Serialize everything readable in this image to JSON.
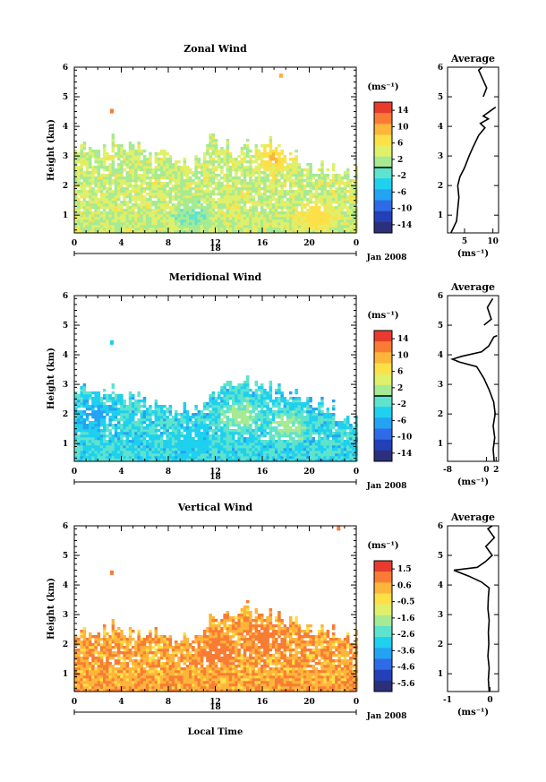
{
  "chart_data": [
    {
      "type": "heatmap",
      "title": "Zonal Wind",
      "ylabel": "Height (km)",
      "xlabel": "",
      "x_ticks": [
        "0",
        "4",
        "8",
        "12",
        "16",
        "20",
        "0"
      ],
      "xlim": [
        0,
        24
      ],
      "y_ticks": [
        "1",
        "2",
        "3",
        "4",
        "5",
        "6"
      ],
      "ylim": [
        0.4,
        6
      ],
      "day_label": "18",
      "date_label": "Jan 2008",
      "colorbar": {
        "unit": "(ms⁻¹)",
        "ticks": [
          "14",
          "10",
          "6",
          "2",
          "-2",
          "-6",
          "-10",
          "-14"
        ],
        "range": [
          -16,
          16
        ],
        "marked_level": 0
      },
      "field": {
        "top": [
          3.3,
          3.5,
          3.2,
          3.6,
          3.4,
          3.3,
          3.0,
          3.1,
          2.9,
          2.8,
          3.1,
          3.6,
          3.4,
          3.2,
          3.4,
          3.3,
          3.5,
          3.2,
          3.0,
          2.8,
          2.7,
          2.6,
          2.6,
          2.5
        ],
        "center_value": 3,
        "patches": [
          {
            "x": 17,
            "y": 3.0,
            "value": 9
          },
          {
            "x": 20.5,
            "y": 1.0,
            "value": 8
          },
          {
            "x": 3.2,
            "y": 4.5,
            "value": 12
          },
          {
            "x": 17.6,
            "y": 5.7,
            "value": 8
          },
          {
            "x": 10,
            "y": 1.0,
            "value": -1
          }
        ]
      },
      "average_profile": {
        "title": "Average",
        "xlabel": "(ms⁻¹)",
        "x_ticks": [
          "5",
          "10"
        ],
        "xlim": [
          2,
          11
        ],
        "ylim": [
          0.4,
          6
        ],
        "points": [
          [
            2.6,
            0.4
          ],
          [
            3.6,
            0.8
          ],
          [
            3.8,
            1.2
          ],
          [
            4.0,
            1.6
          ],
          [
            3.8,
            2.0
          ],
          [
            4.2,
            2.3
          ],
          [
            5.0,
            2.6
          ],
          [
            5.8,
            3.0
          ],
          [
            6.5,
            3.3
          ],
          [
            7.5,
            3.7
          ],
          [
            8.6,
            3.95
          ],
          [
            7.8,
            4.1
          ],
          [
            9.2,
            4.25
          ],
          [
            8.3,
            4.35
          ],
          [
            10.1,
            4.6
          ],
          [
            10.5,
            4.65
          ]
        ],
        "points_upper": [
          [
            8.3,
            5.0
          ],
          [
            8.9,
            5.3
          ],
          [
            7.5,
            5.9
          ],
          [
            8.1,
            6.0
          ]
        ]
      }
    },
    {
      "type": "heatmap",
      "title": "Meridional Wind",
      "ylabel": "Height (km)",
      "xlabel": "",
      "x_ticks": [
        "0",
        "4",
        "8",
        "12",
        "16",
        "20",
        "0"
      ],
      "xlim": [
        0,
        24
      ],
      "y_ticks": [
        "1",
        "2",
        "3",
        "4",
        "5",
        "6"
      ],
      "ylim": [
        0.4,
        6
      ],
      "day_label": "18",
      "date_label": "Jan 2008",
      "colorbar": {
        "unit": "(ms⁻¹)",
        "ticks": [
          "14",
          "10",
          "6",
          "2",
          "-2",
          "-6",
          "-10",
          "-14"
        ],
        "range": [
          -16,
          16
        ],
        "marked_level": 0
      },
      "field": {
        "top": [
          2.9,
          3.0,
          2.8,
          2.9,
          2.7,
          2.6,
          2.3,
          2.2,
          2.1,
          2.2,
          2.4,
          2.6,
          3.0,
          3.2,
          3.1,
          3.0,
          2.9,
          2.8,
          2.7,
          2.6,
          2.5,
          2.3,
          2.0,
          1.9
        ],
        "center_value": -3,
        "patches": [
          {
            "x": 1.5,
            "y": 2.0,
            "value": -7
          },
          {
            "x": 14,
            "y": 2.0,
            "value": 2
          },
          {
            "x": 18,
            "y": 1.6,
            "value": 2
          },
          {
            "x": 10,
            "y": 1.2,
            "value": -5
          },
          {
            "x": 3.2,
            "y": 4.4,
            "value": -4
          }
        ]
      },
      "average_profile": {
        "title": "Average",
        "xlabel": "(ms⁻¹)",
        "x_ticks": [
          "-8",
          "0",
          "2"
        ],
        "xlim": [
          -8,
          2.5
        ],
        "ylim": [
          0.4,
          6
        ],
        "points": [
          [
            1.6,
            0.4
          ],
          [
            1.4,
            0.8
          ],
          [
            1.7,
            1.2
          ],
          [
            1.4,
            1.6
          ],
          [
            1.8,
            2.0
          ],
          [
            1.5,
            2.4
          ],
          [
            0.6,
            2.8
          ],
          [
            -0.5,
            3.2
          ],
          [
            -2.0,
            3.6
          ],
          [
            -5.5,
            3.75
          ],
          [
            -7.0,
            3.85
          ],
          [
            -5.0,
            3.95
          ],
          [
            -1.0,
            4.1
          ],
          [
            0.5,
            4.3
          ],
          [
            1.5,
            4.6
          ],
          [
            2.2,
            4.65
          ]
        ],
        "points_upper": [
          [
            -0.5,
            5.0
          ],
          [
            1.0,
            5.2
          ],
          [
            0.2,
            5.6
          ],
          [
            1.3,
            5.9
          ]
        ]
      }
    },
    {
      "type": "heatmap",
      "title": "Vertical Wind",
      "ylabel": "Height (km)",
      "xlabel": "Local Time",
      "x_ticks": [
        "0",
        "4",
        "8",
        "12",
        "16",
        "20",
        "0"
      ],
      "xlim": [
        0,
        24
      ],
      "y_ticks": [
        "1",
        "2",
        "3",
        "4",
        "5",
        "6"
      ],
      "ylim": [
        0.4,
        6
      ],
      "day_label": "18",
      "date_label": "Jan 2008",
      "colorbar": {
        "unit": "(ms⁻¹)",
        "ticks": [
          "1.5",
          "0.6",
          "-0.5",
          "-1.6",
          "-2.6",
          "-3.6",
          "-4.6",
          "-5.6"
        ],
        "range": [
          -6.1,
          2.0
        ],
        "marked_level": null
      },
      "field": {
        "top": [
          2.4,
          2.6,
          2.5,
          2.7,
          2.5,
          2.3,
          2.4,
          2.2,
          2.1,
          2.3,
          2.5,
          2.8,
          3.0,
          3.2,
          3.3,
          3.1,
          3.0,
          2.9,
          2.8,
          2.7,
          2.6,
          2.5,
          2.4,
          2.3
        ],
        "center_value": 0.5,
        "patches": [
          {
            "x": 12,
            "y": 1.8,
            "value": 1.1
          },
          {
            "x": 16,
            "y": 2.2,
            "value": 1.1
          },
          {
            "x": 3.2,
            "y": 4.4,
            "value": 1.0
          },
          {
            "x": 22.5,
            "y": 5.9,
            "value": 1.0
          }
        ]
      },
      "average_profile": {
        "title": "Average",
        "xlabel": "(ms⁻¹)",
        "x_ticks": [
          "-1",
          "0"
        ],
        "xlim": [
          -1,
          0.2
        ],
        "ylim": [
          0.4,
          6
        ],
        "points": [
          [
            -0.02,
            0.4
          ],
          [
            -0.04,
            0.8
          ],
          [
            -0.02,
            1.2
          ],
          [
            -0.05,
            1.6
          ],
          [
            -0.03,
            2.0
          ],
          [
            -0.04,
            2.4
          ],
          [
            -0.02,
            2.8
          ],
          [
            -0.05,
            3.2
          ],
          [
            -0.04,
            3.6
          ],
          [
            -0.02,
            3.9
          ],
          [
            -0.2,
            4.1
          ],
          [
            -0.5,
            4.3
          ],
          [
            -0.85,
            4.5
          ],
          [
            -0.3,
            4.6
          ],
          [
            -0.1,
            4.8
          ],
          [
            0.05,
            5.0
          ],
          [
            -0.1,
            5.3
          ],
          [
            0.1,
            5.6
          ],
          [
            -0.05,
            5.9
          ],
          [
            0.05,
            6.0
          ]
        ],
        "points_upper": []
      }
    }
  ]
}
